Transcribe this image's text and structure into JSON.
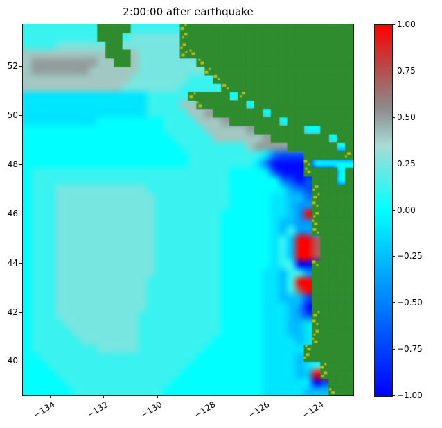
{
  "chart_data": {
    "type": "heatmap",
    "title": "2:00:00 after earthquake",
    "description": "Tsunami sea-surface elevation snapshot off the Pacific Northwest coast; green cells are land, yellow-green speckles are shoreline cells.",
    "x_axis": {
      "range": [
        -135.0,
        -122.7
      ],
      "ticks": [
        -134,
        -132,
        -130,
        -128,
        -126,
        -124
      ],
      "tick_labels": [
        "−134",
        "−132",
        "−130",
        "−128",
        "−126",
        "−124"
      ]
    },
    "y_axis": {
      "range": [
        38.6,
        53.7
      ],
      "ticks": [
        52,
        50,
        48,
        46,
        44,
        42,
        40
      ],
      "tick_labels": [
        "52",
        "50",
        "48",
        "46",
        "44",
        "42",
        "40"
      ]
    },
    "colorbar": {
      "range": [
        -1.0,
        1.0
      ],
      "ticks": [
        1.0,
        0.75,
        0.5,
        0.25,
        0.0,
        -0.25,
        -0.5,
        -0.75,
        -1.0
      ],
      "tick_labels": [
        "1.00",
        "0.75",
        "0.50",
        "0.25",
        "0.00",
        "−0.25",
        "−0.50",
        "−0.75",
        "−1.00"
      ],
      "colormap_stops": [
        {
          "value": -1.0,
          "color": "#0000ff"
        },
        {
          "value": 0.0,
          "color": "#00ffff"
        },
        {
          "value": 0.35,
          "color": "#a8dcd4"
        },
        {
          "value": 0.55,
          "color": "#8c8c8c"
        },
        {
          "value": 0.75,
          "color": "#b25050"
        },
        {
          "value": 1.0,
          "color": "#ff0000"
        }
      ]
    },
    "field": {
      "note": "Coarse 40x44 grid of surface elevation, row-major from north (lat 53.7) to south (lat 38.6), west (lon -135.0) to east (lon -122.7).",
      "land_color": "#2e8b2e",
      "shore_color": "#b8bc20",
      "encoding": {
        "a": -0.95,
        "b": -0.7,
        "c": -0.55,
        "d": -0.4,
        "e": -0.25,
        "f": -0.1,
        "g": 0.0,
        "h": 0.12,
        "i": 0.25,
        "j": 0.4,
        "k": 0.5,
        "m": 0.72,
        "r": 1.0,
        "L": "land",
        "y": "shore"
      },
      "rows": [
        "hhhhhhhhhLLLLhhhhhhyLLLLLLLLLLLLLLLLLLLL",
        "hhhhhhhhhLLLhiiiiiiyLLLLLLLLLLLLLLLLLLLL",
        "hhhhiiiiiiLLiiiiiiiyLLLLLLLLLLLLLLLLLLLL",
        "jjjjjjjjjjLLLjiiiiiyyLLLLLLLLLLLLLLLLLLL",
        "jkkkkkkkkjjLLjiiiiiiiyLLLLLLLLLLLLLLLLLL",
        "jkkkkkkkjjjjjjiiiiiiiiyLLLLLLLLLLLLLLLLL",
        "jjjjjjjjjjjjjiiiiiiihhhyLLLLLLLLLLLLLLLL",
        "jjjjjjjjjjjjiiiiiiihhhhhyLLLLLLLLLLLLLLL",
        "fffffffffffffffhhhhhyLLLLgyLLLLLLLLLLLLL",
        "fffffffffffffffhhhhjjyLLLLLgLLLLLLLLLLLL",
        "fffffffffffffffhhhhhjjkLLLLLLgLLLLLLLLLL",
        "fffffffffgggggggghhhhjjjkLLLLLLgLLLLLLLL",
        "ggggggggggggggggghhhhhjjjjjkLLLLLLggLLLL",
        "gggggggggggggggggghhhhhjjjjjjkLLLLLLLgLL",
        "ggggggggggggggggggghhhhhhhhjkkkkLLLLLLgL",
        "gggggggggggggggggggghhhhhhhhhfcbbbLLLLLy",
        "gggggggggggggggggggghhhhhhhhfcaaaayggggg",
        "ghhhhhhhhhhhhhhhhhhhhhhhhggggfbaaayLLLgL",
        "ghhhhhhhhhhhhhhhhhhhhhhhhggggggcbabLLLgL",
        "ghhhiiiiiiiiiiihhhhhhhhhhggggggfdcbyLLLL",
        "ghhhiiiiiiiiiiiihhhhhhhhhgggggffeecyLLLL",
        "ghhhiiiiiiiiiiiihhhhhhhhhgggggffeddyLLLL",
        "ghhhiiiiiiiiiiiihhhhhhhhggggggffedryLLLL",
        "ghhhiiiiiiiiiiiihhhhhhhhggggggfeeddyLLLL",
        "ghhhiiiiiiiiiiiihhhhhhhhggggggfehddyLLLL",
        "ghhhiiiiiiiiiiiihhhhhhhhggggggfherrmLLLL",
        "ghhhiiiiiiiiiiiihhhhhhhhggggggfherrmLLLL",
        "ghhhiiiiiiiiiiiihhhhhhhhggggggfherrmLLLL",
        "ghhhiiiiiiiiiiiihhhhhhhhggggggfhhaayLLLL",
        "ghhhiiiiiiiiiiiihhhhhhhhgggggffehhdLLLLL",
        "ghhhiiiiiiiiiiihhhhhhhhhgggggffehrrLLLLL",
        "ghhhiiiiiiiiiiihhhhhhhhhgggggffehmrLLLLL",
        "ghhhiiiiiiiiiiihhhhhhhhhgggggffeeebLLLLL",
        "ghhhiiiiiiiiiiihhhhhhhhhgggggfffedaLLLLL",
        "ghhhiiiiiiiiiihhhhhhhhhhgggggfffedbyLLLL",
        "ghhhhiiiiiiiiihhhhhhhhhhgggggfffeefyLLLL",
        "ghhhhhiiiiiiiihhhhhhhhhhgggggfffeefyLLLL",
        "ghhhhhhiiiiiiihhhhhhhhhggggggffffefyLLLL",
        "ghhhhhhhhiiiiihhhhhhhhgggggggfffffyLLLLL",
        "gghhhhhhhhhhhhhhhhhhhggggggggffffeyLLLLL",
        "ggghhhhhhhhhhhhhhhhhgggggggggffffefhyLLL",
        "gggghhhhhhhhhhhhhhhggggggggggffffeeryLLL",
        "ggggghhhhhhhhhhhhhgggggggggggffffffabLLL",
        "gggggghhhhhhhhhhhggggggggggggfffffeeeyLL"
      ]
    }
  }
}
